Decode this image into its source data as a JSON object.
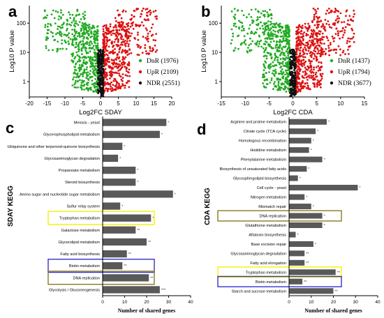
{
  "chart_data": [
    {
      "type": "scatter",
      "panel": "a",
      "xlabel": "Log2FC SDAY",
      "ylabel": "Log10 P value",
      "x_ticks": [
        -20,
        -15,
        -10,
        -5,
        0,
        5,
        10,
        15,
        20
      ],
      "y_ticks": [
        1,
        10,
        100
      ],
      "xlim": [
        -20,
        20
      ],
      "ylim": [
        0.3,
        400
      ],
      "y_scale": "log",
      "legend_position": "bottom-right",
      "series": [
        {
          "name": "DnR (1976)",
          "color": "#22aa22",
          "side": "negative"
        },
        {
          "name": "UpR (2109)",
          "color": "#dd1111",
          "side": "positive"
        },
        {
          "name": "NDR (2551)",
          "color": "#111111",
          "side": "center"
        }
      ]
    },
    {
      "type": "scatter",
      "panel": "b",
      "xlabel": "Log2FC CDA",
      "ylabel": "Log10 P value",
      "x_ticks": [
        -15,
        -10,
        -5,
        0,
        5,
        10,
        15
      ],
      "y_ticks": [
        1,
        10,
        100
      ],
      "xlim": [
        -15,
        15
      ],
      "ylim": [
        0.3,
        400
      ],
      "y_scale": "log",
      "legend_position": "bottom-right",
      "series": [
        {
          "name": "DnR (1437)",
          "color": "#22aa22",
          "side": "negative"
        },
        {
          "name": "UpR (1794)",
          "color": "#dd1111",
          "side": "positive"
        },
        {
          "name": "NDR (3677)",
          "color": "#111111",
          "side": "center"
        }
      ]
    },
    {
      "type": "bar",
      "orientation": "horizontal",
      "panel": "c",
      "xlabel": "Number of shared genes",
      "ylabel": "SDAY KEGG",
      "xlim": [
        0,
        40
      ],
      "x_ticks": [
        0,
        10,
        20,
        30,
        40
      ],
      "bar_color": "#595959",
      "categories": [
        "Meiosis - yeast",
        "Glycerophospholipid metabolism",
        "Ubiquinone and other terpenoid-quinone biosynthesis",
        "Glycosaminoglycan degradation",
        "Propanoate metabolism",
        "Steroid biosynthesis",
        "Amino sugar and nucleotide sugar metabolism",
        "Sulfur relay system",
        "Tryptophan metabolism",
        "Galactose metabolism",
        "Glycerolipid metabolism",
        "Fatty acid biosynthesis",
        "Biotin metabolism",
        "DNA replication",
        "Glycolysis / Gluconeogenesis"
      ],
      "values": [
        29,
        26,
        9,
        7,
        15,
        15,
        32,
        8,
        22,
        15,
        20,
        11,
        9,
        21,
        26
      ],
      "significance": [
        "*",
        "*",
        "*",
        "*",
        "*",
        "*",
        "*",
        "*",
        "*",
        "**",
        "**",
        "**",
        "**",
        "**",
        "***"
      ],
      "highlights": [
        {
          "category": "Tryptophan metabolism",
          "color": "#f2f200"
        },
        {
          "category": "Biotin metabolism",
          "color": "#3333cc"
        },
        {
          "category": "DNA replication",
          "color": "#8a7a1e"
        }
      ]
    },
    {
      "type": "bar",
      "orientation": "horizontal",
      "panel": "d",
      "xlabel": "Number of shared genes",
      "ylabel": "CDA KEGG",
      "xlim": [
        0,
        40
      ],
      "x_ticks": [
        0,
        10,
        20,
        30,
        40
      ],
      "bar_color": "#595959",
      "categories": [
        "Arginine and proline metabolism",
        "Citrate cycle (TCA cycle)",
        "Homologous recombination",
        "Histidine metabolism",
        "Phenylalanine metabolism",
        "Biosynthesis of unsaturated fatty acids",
        "Glycosphingolipid biosynthesis",
        "Cell cycle - yeast",
        "Nitrogen metabolism",
        "Mismatch repair",
        "DNA replication",
        "Glutathione metabolism",
        "Aflatoxin biosynthesis",
        "Base excision repair",
        "Glycosaminoglycan degradation",
        "Fatty acid elongation",
        "Tryptophan metabolism",
        "Biotin metabolism",
        "Starch and sucrose metabolism"
      ],
      "values": [
        17,
        12,
        10,
        9,
        15,
        8,
        4,
        31,
        7,
        10,
        15,
        15,
        3,
        11,
        7,
        7,
        21,
        6,
        20
      ],
      "significance": [
        "*",
        "*",
        "*",
        "*",
        "*",
        "*",
        "*",
        "*",
        "*",
        "*",
        "*",
        "*",
        "*",
        "*",
        "**",
        "**",
        "**",
        "**",
        "**"
      ],
      "highlights": [
        {
          "category": "DNA replication",
          "color": "#8a7a1e"
        },
        {
          "category": "Tryptophan metabolism",
          "color": "#f2f200"
        },
        {
          "category": "Biotin metabolism",
          "color": "#3333cc"
        }
      ]
    }
  ],
  "panel_labels": [
    "a",
    "b",
    "c",
    "d"
  ]
}
